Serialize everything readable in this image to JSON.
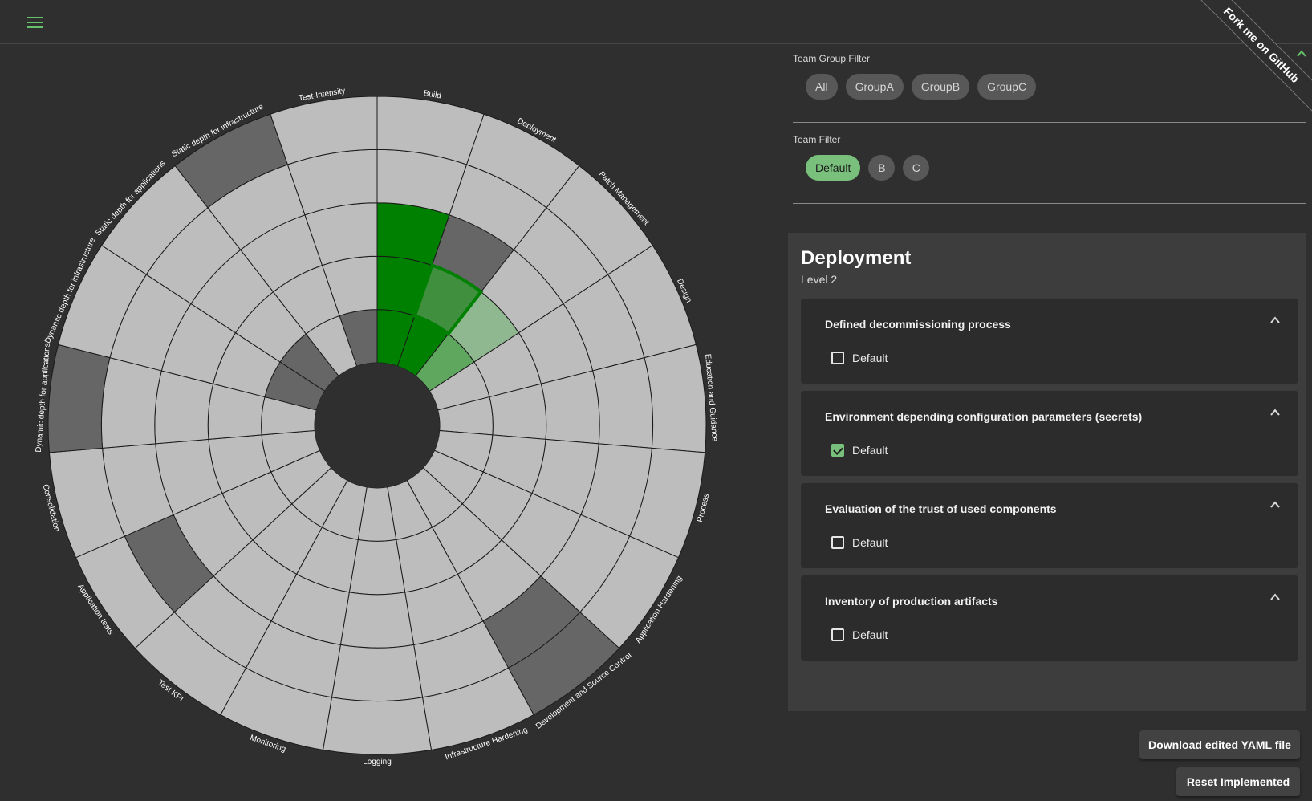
{
  "header": {
    "menu_icon": "hamburger-menu-icon",
    "ribbon": "Fork me on GitHub",
    "collapse_icon": "chevron-up-icon"
  },
  "team_group_filter": {
    "label": "Team Group Filter",
    "chips": [
      "All",
      "GroupA",
      "GroupB",
      "GroupC"
    ]
  },
  "team_filter": {
    "label": "Team Filter",
    "chips": [
      "Default",
      "B",
      "C"
    ],
    "selected": "Default"
  },
  "details": {
    "title": "Deployment",
    "level": "Level 2",
    "activities": [
      {
        "title": "Defined decommissioning process",
        "team": "Default",
        "checked": false
      },
      {
        "title": "Environment depending configuration parameters (secrets)",
        "team": "Default",
        "checked": true
      },
      {
        "title": "Evaluation of the trust of used components",
        "team": "Default",
        "checked": false
      },
      {
        "title": "Inventory of production artifacts",
        "team": "Default",
        "checked": false
      }
    ]
  },
  "buttons": {
    "download": "Download edited YAML file",
    "reset": "Reset Implemented"
  },
  "chart_data": {
    "type": "heatmap",
    "labels": [
      "Build",
      "Deployment",
      "Patch Management",
      "Design",
      "Education and Guidance",
      "Process",
      "Application Hardening",
      "Development and Source Control",
      "Infrastructure Hardening",
      "Logging",
      "Monitoring",
      "Test KPI",
      "Application tests",
      "Consolidation",
      "Dynamic depth for applications",
      "Dynamic depth for infrastructure",
      "Static depth for applications",
      "Static depth for infrastructure",
      "Test-Intensity"
    ],
    "levels": 5,
    "colors": {
      "empty": "#bdbdbd",
      "na": "#666666",
      "implemented": "#008000",
      "partial": "#3f8f3f",
      "light": "#5fa65f",
      "selected": "#90b890",
      "outline": "#008000",
      "center": "#2f2f2f"
    },
    "cells": [
      [
        "implemented",
        "implemented",
        "implemented",
        "empty",
        "empty"
      ],
      [
        "implemented",
        "partial",
        "na",
        "empty",
        "empty"
      ],
      [
        "light",
        "selected",
        "empty",
        "empty",
        "empty"
      ],
      [
        "empty",
        "empty",
        "empty",
        "empty",
        "empty"
      ],
      [
        "empty",
        "empty",
        "empty",
        "empty",
        "empty"
      ],
      [
        "empty",
        "empty",
        "empty",
        "empty",
        "empty"
      ],
      [
        "empty",
        "empty",
        "empty",
        "empty",
        "empty"
      ],
      [
        "empty",
        "empty",
        "empty",
        "na",
        "na"
      ],
      [
        "empty",
        "empty",
        "empty",
        "empty",
        "empty"
      ],
      [
        "empty",
        "empty",
        "empty",
        "empty",
        "empty"
      ],
      [
        "empty",
        "empty",
        "empty",
        "empty",
        "empty"
      ],
      [
        "empty",
        "empty",
        "empty",
        "empty",
        "empty"
      ],
      [
        "empty",
        "empty",
        "empty",
        "na",
        "empty"
      ],
      [
        "empty",
        "empty",
        "empty",
        "empty",
        "empty"
      ],
      [
        "empty",
        "empty",
        "empty",
        "empty",
        "na"
      ],
      [
        "na",
        "empty",
        "empty",
        "empty",
        "empty"
      ],
      [
        "na",
        "empty",
        "empty",
        "empty",
        "empty"
      ],
      [
        "empty",
        "empty",
        "empty",
        "empty",
        "na"
      ],
      [
        "na",
        "empty",
        "empty",
        "empty",
        "empty"
      ]
    ],
    "selected_cell": {
      "dimension": "Deployment",
      "level": 2
    }
  }
}
